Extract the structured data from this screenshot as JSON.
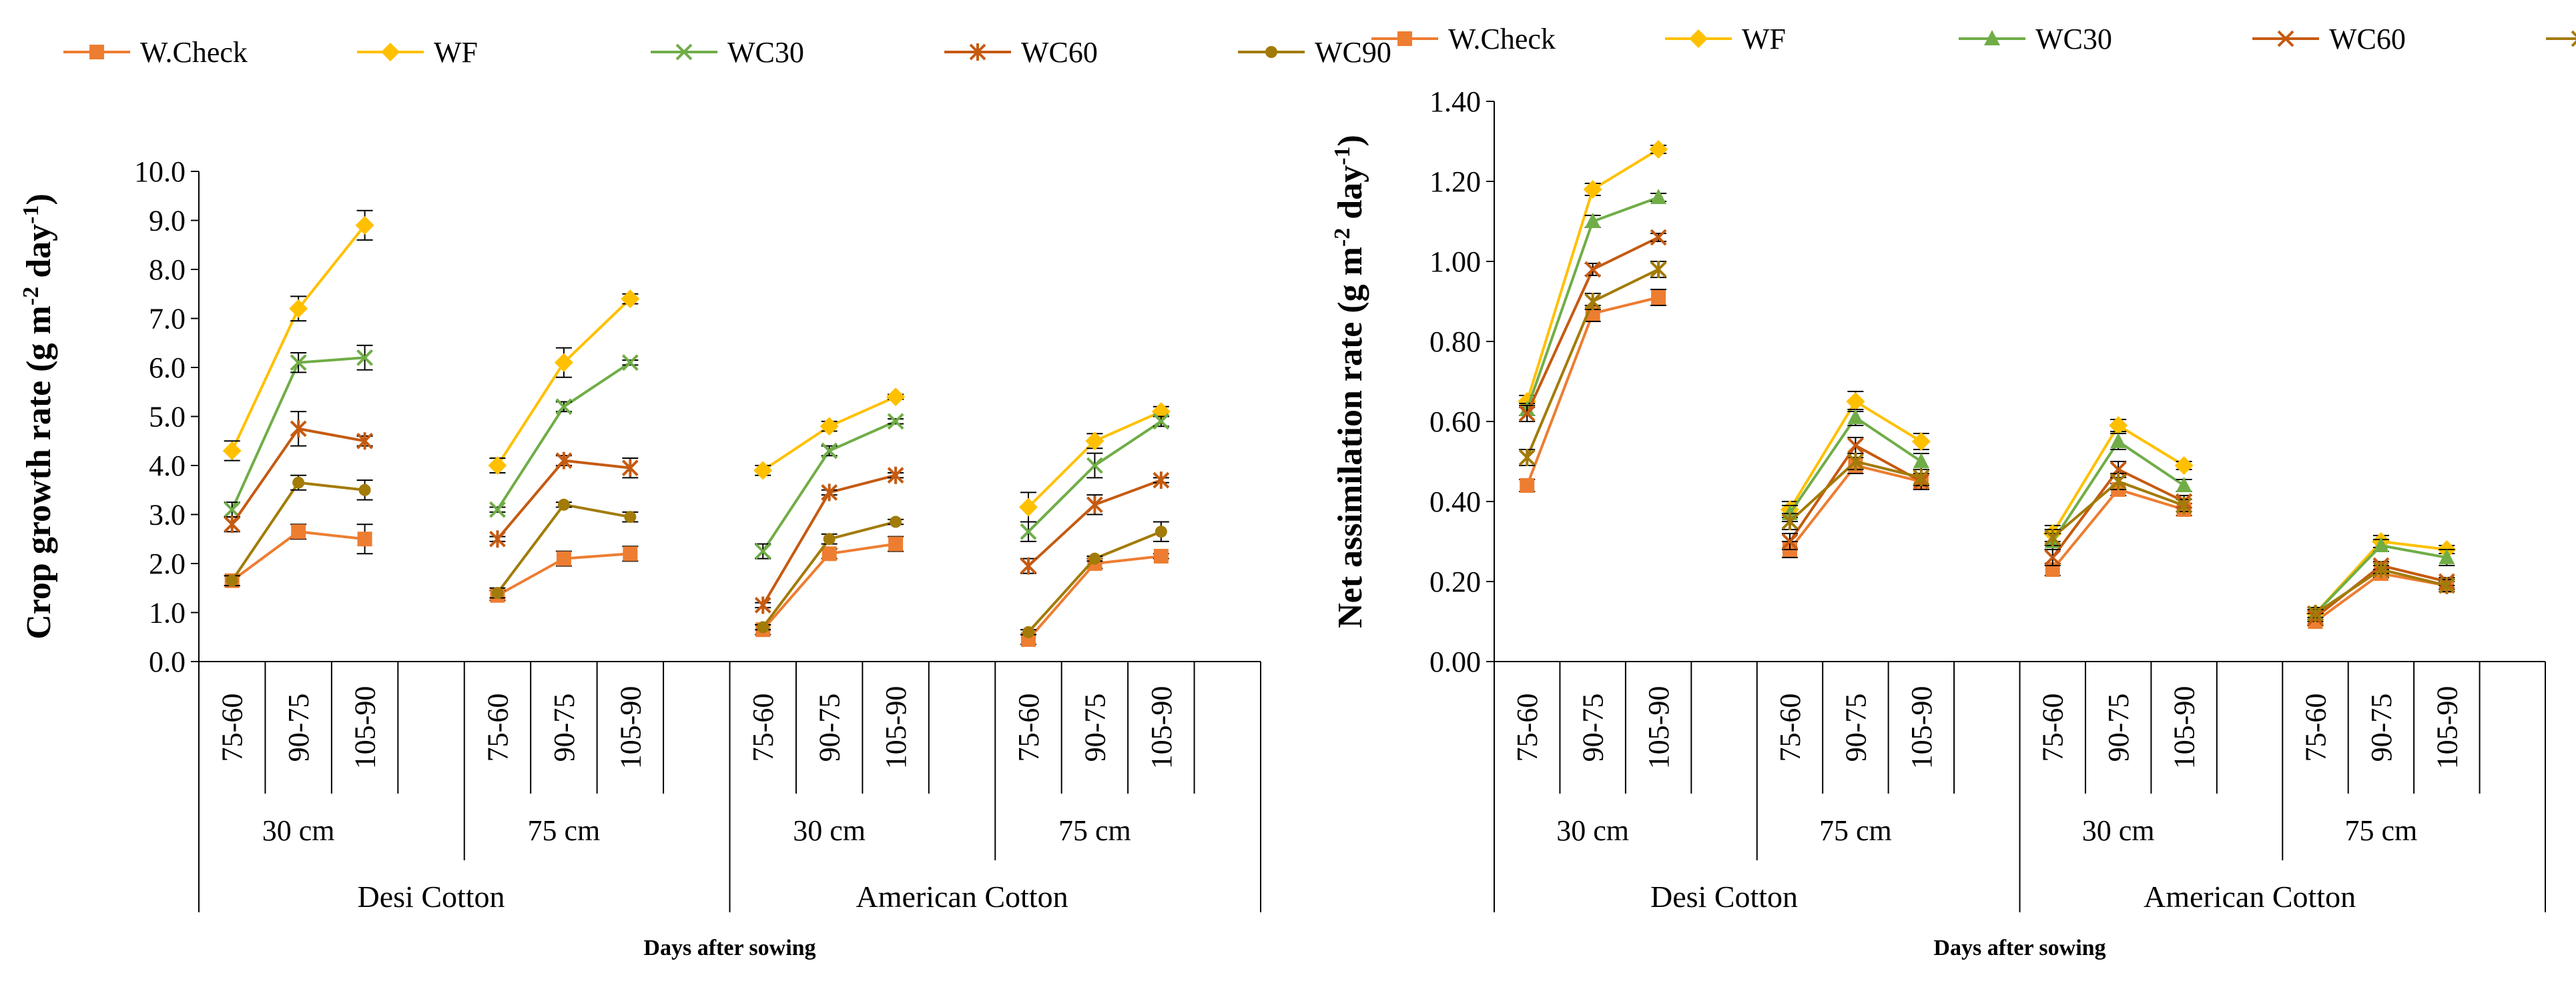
{
  "colors": {
    "W.Check": "#ED7D31",
    "WF": "#FFC000",
    "WC30": "#70AD47",
    "WC60": "#C55A11",
    "WC90": "#A27B08",
    "axis": "#000000"
  },
  "legend": [
    "W.Check",
    "WF",
    "WC30",
    "WC60",
    "WC90"
  ],
  "chart_data": [
    {
      "type": "line",
      "title": "",
      "ylabel": "Crop growth rate (g m-2 day-1)",
      "ylabel_parts": {
        "main": "Crop growth  rate (g m",
        "sup1": "-2",
        "mid": " day",
        "sup2": "-1",
        "end": ")"
      },
      "xlabel": "Days after sowing",
      "ylim": [
        0,
        10
      ],
      "yticks": [
        "0.0",
        "1.0",
        "2.0",
        "3.0",
        "4.0",
        "5.0",
        "6.0",
        "7.0",
        "8.0",
        "9.0",
        "10.0"
      ],
      "yticks_values": [
        0,
        1,
        2,
        3,
        4,
        5,
        6,
        7,
        8,
        9,
        10
      ],
      "sub_categories": [
        "75-60",
        "90-75",
        "105-90"
      ],
      "spacings": [
        "30 cm",
        "75 cm",
        "30 cm",
        "75 cm"
      ],
      "cotton_types": [
        "Desi Cotton",
        "American Cotton"
      ],
      "grid": false,
      "groups": [
        {
          "series": [
            {
              "name": "W.Check",
              "values": [
                1.65,
                2.65,
                2.5
              ],
              "errors": [
                0.1,
                0.15,
                0.3
              ]
            },
            {
              "name": "WF",
              "values": [
                4.3,
                7.2,
                8.9
              ],
              "errors": [
                0.2,
                0.25,
                0.3
              ]
            },
            {
              "name": "WC30",
              "values": [
                3.1,
                6.1,
                6.2
              ],
              "errors": [
                0.15,
                0.2,
                0.25
              ]
            },
            {
              "name": "WC60",
              "values": [
                2.8,
                4.75,
                4.5
              ],
              "errors": [
                0.15,
                0.35,
                0.1
              ]
            },
            {
              "name": "WC90",
              "values": [
                1.65,
                3.65,
                3.5
              ],
              "errors": [
                0.1,
                0.15,
                0.2
              ]
            }
          ]
        },
        {
          "series": [
            {
              "name": "W.Check",
              "values": [
                1.35,
                2.1,
                2.2
              ],
              "errors": [
                0.1,
                0.15,
                0.15
              ]
            },
            {
              "name": "WF",
              "values": [
                4.0,
                6.1,
                7.4
              ],
              "errors": [
                0.15,
                0.3,
                0.1
              ]
            },
            {
              "name": "WC30",
              "values": [
                3.1,
                5.2,
                6.1
              ],
              "errors": [
                0.05,
                0.1,
                0.05
              ]
            },
            {
              "name": "WC60",
              "values": [
                2.5,
                4.1,
                3.95
              ],
              "errors": [
                0.05,
                0.1,
                0.2
              ]
            },
            {
              "name": "WC90",
              "values": [
                1.4,
                3.2,
                2.95
              ],
              "errors": [
                0.1,
                0.05,
                0.1
              ]
            }
          ]
        },
        {
          "series": [
            {
              "name": "W.Check",
              "values": [
                0.65,
                2.2,
                2.4
              ],
              "errors": [
                0.1,
                0.1,
                0.15
              ]
            },
            {
              "name": "WF",
              "values": [
                3.9,
                4.8,
                5.4
              ],
              "errors": [
                0.1,
                0.1,
                0.05
              ]
            },
            {
              "name": "WC30",
              "values": [
                2.25,
                4.3,
                4.9
              ],
              "errors": [
                0.15,
                0.1,
                0.05
              ]
            },
            {
              "name": "WC60",
              "values": [
                1.15,
                3.45,
                3.8
              ],
              "errors": [
                0.05,
                0.05,
                0.05
              ]
            },
            {
              "name": "WC90",
              "values": [
                0.7,
                2.5,
                2.85
              ],
              "errors": [
                0.05,
                0.1,
                0.05
              ]
            }
          ]
        },
        {
          "series": [
            {
              "name": "W.Check",
              "values": [
                0.45,
                2.0,
                2.15
              ],
              "errors": [
                0.1,
                0.1,
                0.05
              ]
            },
            {
              "name": "WF",
              "values": [
                3.15,
                4.5,
                5.1
              ],
              "errors": [
                0.3,
                0.15,
                0.1
              ]
            },
            {
              "name": "WC30",
              "values": [
                2.65,
                4.0,
                4.9
              ],
              "errors": [
                0.2,
                0.25,
                0.1
              ]
            },
            {
              "name": "WC60",
              "values": [
                1.95,
                3.2,
                3.7
              ],
              "errors": [
                0.15,
                0.2,
                0.05
              ]
            },
            {
              "name": "WC90",
              "values": [
                0.6,
                2.1,
                2.65
              ],
              "errors": [
                0.05,
                0.05,
                0.2
              ]
            }
          ]
        }
      ]
    },
    {
      "type": "line",
      "title": "",
      "ylabel": "Net assimilation rate (g m-2 day-1)",
      "ylabel_parts": {
        "main": "Net assimilation  rate (g m",
        "sup1": "-2",
        "mid": " day",
        "sup2": "-1",
        "end": ")"
      },
      "xlabel": "Days after sowing",
      "ylim": [
        0,
        1.4
      ],
      "yticks": [
        "0.00",
        "0.20",
        "0.40",
        "0.60",
        "0.80",
        "1.00",
        "1.20",
        "1.40"
      ],
      "yticks_values": [
        0,
        0.2,
        0.4,
        0.6,
        0.8,
        1.0,
        1.2,
        1.4
      ],
      "sub_categories": [
        "75-60",
        "90-75",
        "105-90"
      ],
      "spacings": [
        "30 cm",
        "75 cm",
        "30 cm",
        "75 cm"
      ],
      "cotton_types": [
        "Desi Cotton",
        "American Cotton"
      ],
      "grid": false,
      "groups": [
        {
          "series": [
            {
              "name": "W.Check",
              "values": [
                0.44,
                0.87,
                0.91
              ],
              "errors": [
                0.015,
                0.02,
                0.02
              ]
            },
            {
              "name": "WF",
              "values": [
                0.65,
                1.18,
                1.28
              ],
              "errors": [
                0.015,
                0.015,
                0.01
              ]
            },
            {
              "name": "WC30",
              "values": [
                0.63,
                1.1,
                1.16
              ],
              "errors": [
                0.015,
                0.015,
                0.01
              ]
            },
            {
              "name": "WC60",
              "values": [
                0.62,
                0.98,
                1.06
              ],
              "errors": [
                0.02,
                0.015,
                0.01
              ]
            },
            {
              "name": "WC90",
              "values": [
                0.51,
                0.9,
                0.98
              ],
              "errors": [
                0.02,
                0.02,
                0.02
              ]
            }
          ]
        },
        {
          "series": [
            {
              "name": "W.Check",
              "values": [
                0.28,
                0.49,
                0.45
              ],
              "errors": [
                0.02,
                0.02,
                0.02
              ]
            },
            {
              "name": "WF",
              "values": [
                0.38,
                0.65,
                0.55
              ],
              "errors": [
                0.02,
                0.025,
                0.02
              ]
            },
            {
              "name": "WC30",
              "values": [
                0.37,
                0.61,
                0.5
              ],
              "errors": [
                0.02,
                0.02,
                0.02
              ]
            },
            {
              "name": "WC60",
              "values": [
                0.3,
                0.54,
                0.45
              ],
              "errors": [
                0.02,
                0.02,
                0.02
              ]
            },
            {
              "name": "WC90",
              "values": [
                0.35,
                0.5,
                0.46
              ],
              "errors": [
                0.02,
                0.02,
                0.02
              ]
            }
          ]
        },
        {
          "series": [
            {
              "name": "W.Check",
              "values": [
                0.23,
                0.43,
                0.38
              ],
              "errors": [
                0.015,
                0.015,
                0.015
              ]
            },
            {
              "name": "WF",
              "values": [
                0.32,
                0.59,
                0.49
              ],
              "errors": [
                0.02,
                0.015,
                0.01
              ]
            },
            {
              "name": "WC30",
              "values": [
                0.3,
                0.55,
                0.44
              ],
              "errors": [
                0.02,
                0.02,
                0.015
              ]
            },
            {
              "name": "WC60",
              "values": [
                0.26,
                0.48,
                0.4
              ],
              "errors": [
                0.02,
                0.02,
                0.015
              ]
            },
            {
              "name": "WC90",
              "values": [
                0.31,
                0.45,
                0.39
              ],
              "errors": [
                0.02,
                0.02,
                0.015
              ]
            }
          ]
        },
        {
          "series": [
            {
              "name": "W.Check",
              "values": [
                0.1,
                0.22,
                0.19
              ],
              "errors": [
                0.01,
                0.01,
                0.01
              ]
            },
            {
              "name": "WF",
              "values": [
                0.12,
                0.3,
                0.28
              ],
              "errors": [
                0.01,
                0.015,
                0.01
              ]
            },
            {
              "name": "WC30",
              "values": [
                0.12,
                0.29,
                0.26
              ],
              "errors": [
                0.015,
                0.015,
                0.02
              ]
            },
            {
              "name": "WC60",
              "values": [
                0.11,
                0.24,
                0.2
              ],
              "errors": [
                0.01,
                0.01,
                0.01
              ]
            },
            {
              "name": "WC90",
              "values": [
                0.12,
                0.23,
                0.19
              ],
              "errors": [
                0.01,
                0.01,
                0.015
              ]
            }
          ]
        }
      ]
    }
  ]
}
